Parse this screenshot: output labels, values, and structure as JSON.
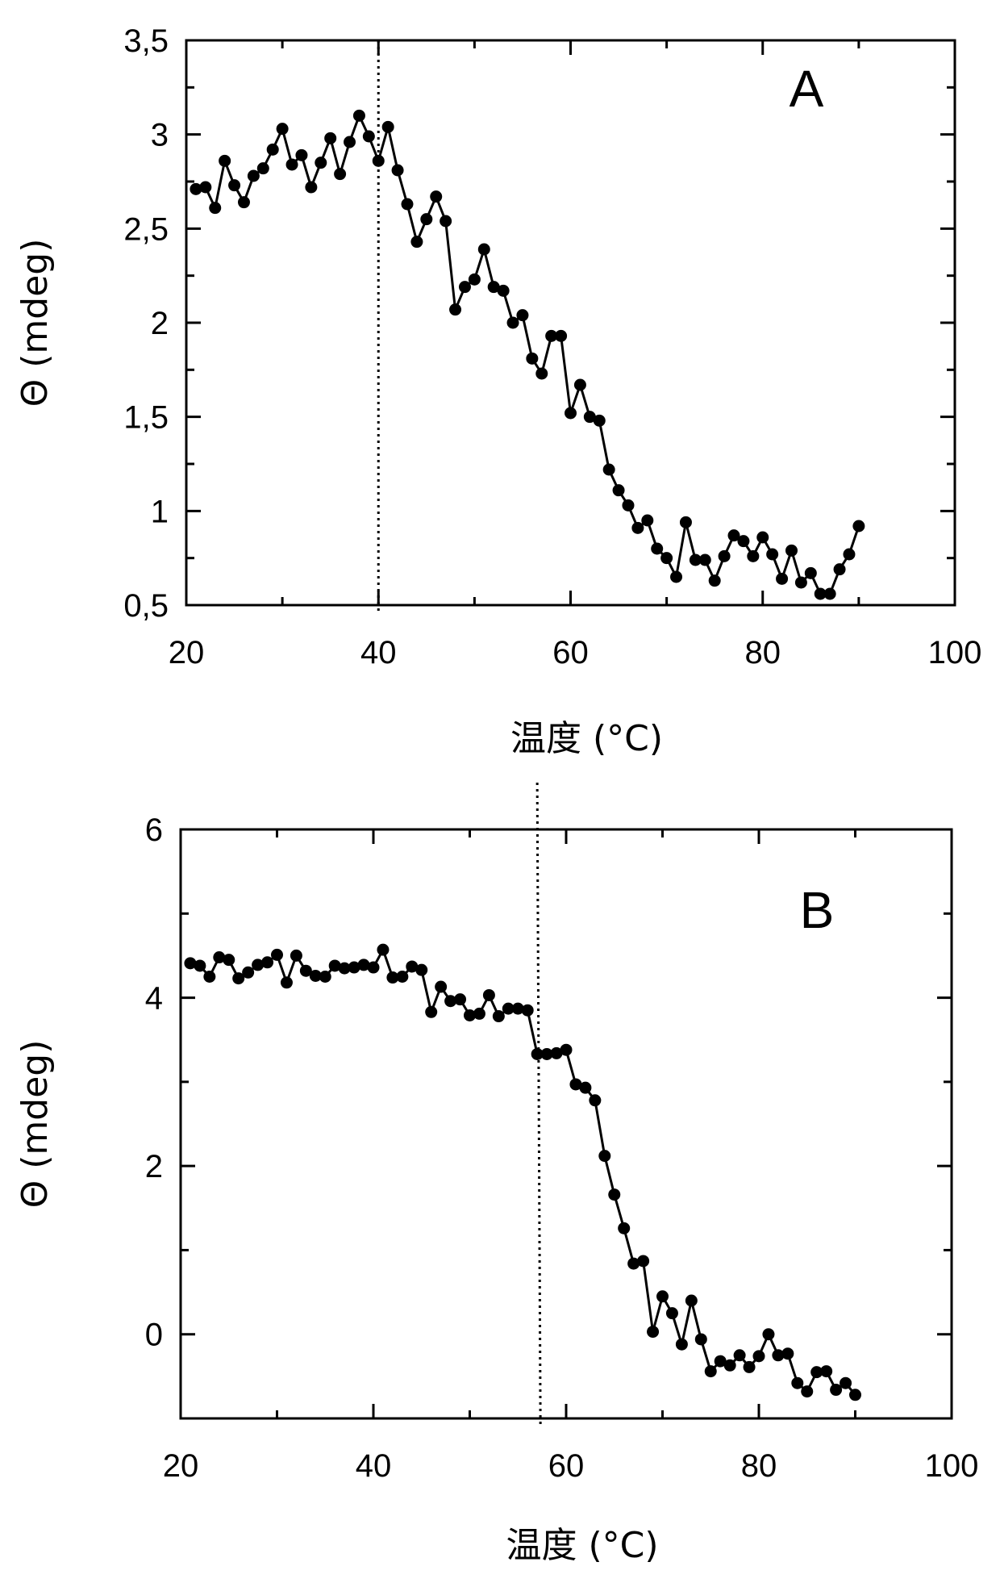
{
  "chart_data": [
    {
      "type": "line",
      "panel_label": "A",
      "xlabel": "温度 (°C)",
      "ylabel": "Θ (mdeg)",
      "xlim": [
        20,
        100
      ],
      "ylim": [
        0.5,
        3.5
      ],
      "xticks": [
        20,
        40,
        60,
        80,
        100
      ],
      "xtick_labels": [
        "20",
        "40",
        "60",
        "80",
        "100"
      ],
      "yticks": [
        0.5,
        1,
        1.5,
        2,
        2.5,
        3,
        3.5
      ],
      "ytick_labels": [
        "0,5",
        "1",
        "1,5",
        "2",
        "2,5",
        "3",
        "3,5"
      ],
      "vline_x": 40,
      "series": [
        {
          "name": "A",
          "x": [
            21,
            22,
            23,
            24,
            25,
            26,
            27,
            28,
            29,
            30,
            31,
            32,
            33,
            34,
            35,
            36,
            37,
            38,
            39,
            40,
            41,
            42,
            43,
            44,
            45,
            46,
            47,
            48,
            49,
            50,
            51,
            52,
            53,
            54,
            55,
            56,
            57,
            58,
            59,
            60,
            61,
            62,
            63,
            64,
            65,
            66,
            67,
            68,
            69,
            70,
            71,
            72,
            73,
            74,
            75,
            76,
            77,
            78,
            79,
            80,
            81,
            82,
            83,
            84,
            85,
            86,
            87,
            88,
            89,
            90
          ],
          "y": [
            2.71,
            2.72,
            2.61,
            2.86,
            2.73,
            2.64,
            2.78,
            2.82,
            2.92,
            3.03,
            2.84,
            2.89,
            2.72,
            2.85,
            2.98,
            2.79,
            2.96,
            3.1,
            2.99,
            2.86,
            3.04,
            2.81,
            2.63,
            2.43,
            2.55,
            2.67,
            2.54,
            2.07,
            2.19,
            2.23,
            2.39,
            2.19,
            2.17,
            2.0,
            2.04,
            1.81,
            1.73,
            1.93,
            1.93,
            1.52,
            1.67,
            1.5,
            1.48,
            1.22,
            1.11,
            1.03,
            0.91,
            0.95,
            0.8,
            0.75,
            0.65,
            0.94,
            0.74,
            0.74,
            0.63,
            0.76,
            0.87,
            0.84,
            0.76,
            0.86,
            0.77,
            0.64,
            0.79,
            0.62,
            0.67,
            0.56,
            0.56,
            0.69,
            0.77,
            0.92
          ]
        }
      ]
    },
    {
      "type": "line",
      "panel_label": "B",
      "xlabel": "温度 (°C)",
      "ylabel": "Θ (mdeg)",
      "xlim": [
        20,
        100
      ],
      "ylim": [
        -1,
        6
      ],
      "xticks": [
        20,
        40,
        60,
        80,
        100
      ],
      "xtick_labels": [
        "20",
        "40",
        "60",
        "80",
        "100"
      ],
      "yticks": [
        0,
        2,
        4,
        6
      ],
      "ytick_labels": [
        "0",
        "2",
        "4",
        "6"
      ],
      "vline_x": 57,
      "series": [
        {
          "name": "B",
          "x": [
            21,
            22,
            23,
            24,
            25,
            26,
            27,
            28,
            29,
            30,
            31,
            32,
            33,
            34,
            35,
            36,
            37,
            38,
            39,
            40,
            41,
            42,
            43,
            44,
            45,
            46,
            47,
            48,
            49,
            50,
            51,
            52,
            53,
            54,
            55,
            56,
            57,
            58,
            59,
            60,
            61,
            62,
            63,
            64,
            65,
            66,
            67,
            68,
            69,
            70,
            71,
            72,
            73,
            74,
            75,
            76,
            77,
            78,
            79,
            80,
            81,
            82,
            83,
            84,
            85,
            86,
            87,
            88,
            89,
            90
          ],
          "y": [
            4.41,
            4.38,
            4.25,
            4.48,
            4.45,
            4.23,
            4.3,
            4.39,
            4.42,
            4.51,
            4.18,
            4.5,
            4.32,
            4.26,
            4.25,
            4.38,
            4.35,
            4.36,
            4.39,
            4.36,
            4.57,
            4.24,
            4.25,
            4.37,
            4.33,
            3.83,
            4.13,
            3.96,
            3.98,
            3.79,
            3.81,
            4.03,
            3.78,
            3.87,
            3.87,
            3.85,
            3.33,
            3.33,
            3.34,
            3.38,
            2.97,
            2.93,
            2.78,
            2.12,
            1.66,
            1.26,
            0.84,
            0.87,
            0.03,
            0.45,
            0.25,
            -0.12,
            0.4,
            -0.06,
            -0.44,
            -0.32,
            -0.37,
            -0.25,
            -0.39,
            -0.26,
            0.0,
            -0.25,
            -0.23,
            -0.58,
            -0.68,
            -0.45,
            -0.44,
            -0.66,
            -0.58,
            -0.72
          ]
        }
      ]
    }
  ]
}
